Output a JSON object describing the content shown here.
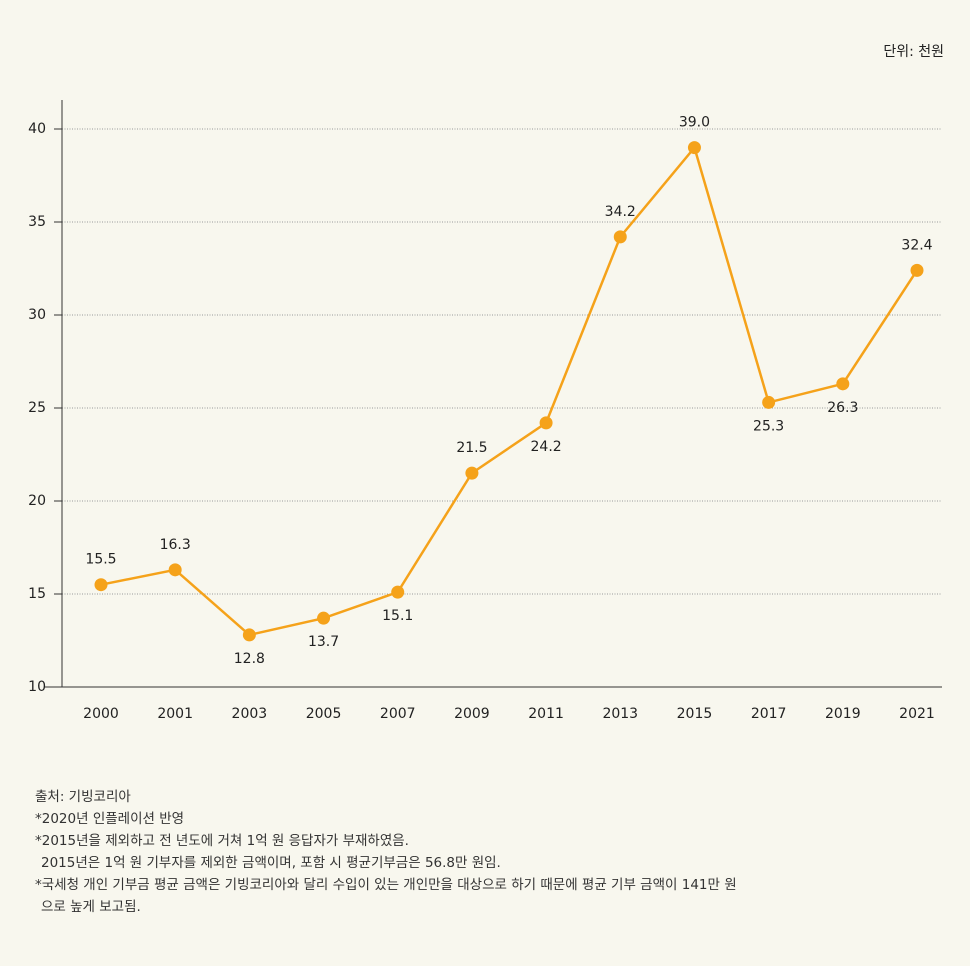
{
  "chart_data": {
    "type": "line",
    "unit": "단위: 천원",
    "categories": [
      "2000",
      "2001",
      "2003",
      "2005",
      "2007",
      "2009",
      "2011",
      "2013",
      "2015",
      "2017",
      "2019",
      "2021"
    ],
    "series": [
      {
        "name": "평균기부금",
        "color": "#f5a21a",
        "values": [
          15.5,
          16.3,
          12.8,
          13.7,
          15.1,
          21.5,
          24.2,
          34.2,
          39.0,
          25.3,
          26.3,
          32.4
        ],
        "value_labels": [
          "15.5",
          "16.3",
          "12.8",
          "13.7",
          "15.1",
          "21.5",
          "24.2",
          "34.2",
          "39.0",
          "25.3",
          "26.3",
          "32.4"
        ]
      }
    ],
    "ylim": [
      10,
      41
    ],
    "yticks": [
      10,
      15,
      20,
      25,
      30,
      35,
      40
    ],
    "grid": true,
    "notes": [
      "출처: 기빙코리아",
      "*2020년 인플레이션 반영",
      "*2015년을 제외하고 전 년도에 거쳐 1억 원 응답자가 부재하였음.",
      "2015년은 1억 원 기부자를 제외한 금액이며, 포함 시 평균기부금은 56.8만 원임.",
      "*국세청 개인 기부금 평균 금액은 기빙코리아와 달리 수입이 있는 개인만을 대상으로 하기 때문에  평균 기부 금액이 141만 원",
      "으로 높게 보고됨."
    ]
  }
}
